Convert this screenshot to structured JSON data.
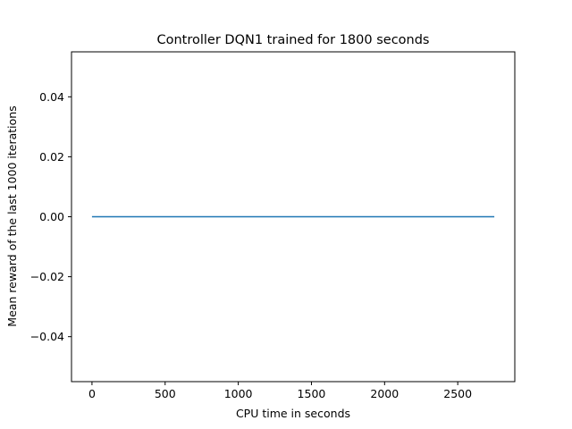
{
  "chart_data": {
    "type": "line",
    "title": "Controller DQN1 trained for 1800 seconds",
    "xlabel": "CPU time in seconds",
    "ylabel": "Mean reward of the last 1000 iterations",
    "xlim": [
      -140,
      2890
    ],
    "ylim": [
      -0.055,
      0.055
    ],
    "xticks": [
      0,
      500,
      1000,
      1500,
      2000,
      2500
    ],
    "xtick_labels": [
      "0",
      "500",
      "1000",
      "1500",
      "2000",
      "2500"
    ],
    "yticks": [
      -0.04,
      -0.02,
      0.0,
      0.02,
      0.04
    ],
    "ytick_labels": [
      "−0.04",
      "−0.02",
      "0.00",
      "0.02",
      "0.04"
    ],
    "grid": false,
    "series": [
      {
        "x": [
          0,
          2750
        ],
        "y": [
          0.0,
          0.0
        ],
        "color": "#1f77b4"
      }
    ]
  }
}
